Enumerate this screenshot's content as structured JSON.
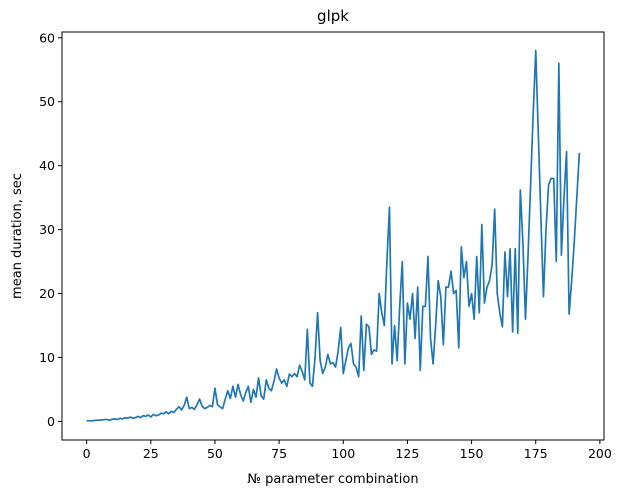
{
  "chart_data": {
    "type": "line",
    "title": "glpk",
    "x_label": "№ parameter combination",
    "y_label": "mean duration, sec",
    "x": [
      0,
      1,
      2,
      3,
      4,
      5,
      6,
      7,
      8,
      9,
      10,
      11,
      12,
      13,
      14,
      15,
      16,
      17,
      18,
      19,
      20,
      21,
      22,
      23,
      24,
      25,
      26,
      27,
      28,
      29,
      30,
      31,
      32,
      33,
      34,
      35,
      36,
      37,
      38,
      39,
      40,
      41,
      42,
      43,
      44,
      45,
      46,
      47,
      48,
      49,
      50,
      51,
      52,
      53,
      54,
      55,
      56,
      57,
      58,
      59,
      60,
      61,
      62,
      63,
      64,
      65,
      66,
      67,
      68,
      69,
      70,
      71,
      72,
      73,
      74,
      75,
      76,
      77,
      78,
      79,
      80,
      81,
      82,
      83,
      84,
      85,
      86,
      87,
      88,
      89,
      90,
      91,
      92,
      93,
      94,
      95,
      96,
      97,
      98,
      99,
      100,
      101,
      102,
      103,
      104,
      105,
      106,
      107,
      108,
      109,
      110,
      111,
      112,
      113,
      114,
      115,
      116,
      117,
      118,
      119,
      120,
      121,
      122,
      123,
      124,
      125,
      126,
      127,
      128,
      129,
      130,
      131,
      132,
      133,
      134,
      135,
      136,
      137,
      138,
      139,
      140,
      141,
      142,
      143,
      144,
      145,
      146,
      147,
      148,
      149,
      150,
      151,
      152,
      153,
      154,
      155,
      156,
      157,
      158,
      159,
      160,
      161,
      162,
      163,
      164,
      165,
      166,
      167,
      168,
      169,
      170,
      171,
      172,
      173,
      174,
      175,
      176,
      177,
      178,
      179,
      180,
      181,
      182,
      183,
      184,
      185,
      186,
      187,
      188,
      189,
      190,
      191,
      192
    ],
    "series": [
      {
        "color": "#1f77b4",
        "values": [
          0.1,
          0.1,
          0.1,
          0.15,
          0.2,
          0.2,
          0.25,
          0.3,
          0.3,
          0.2,
          0.35,
          0.4,
          0.3,
          0.5,
          0.4,
          0.6,
          0.5,
          0.7,
          0.5,
          0.6,
          0.8,
          0.6,
          0.9,
          0.8,
          1.0,
          0.7,
          1.1,
          0.9,
          1.0,
          1.3,
          1.2,
          1.5,
          1.2,
          1.6,
          1.4,
          1.9,
          2.3,
          1.8,
          2.5,
          3.8,
          2.0,
          2.2,
          1.9,
          2.6,
          3.5,
          2.4,
          2.0,
          2.2,
          2.5,
          2.3,
          5.2,
          2.6,
          2.3,
          2.0,
          3.5,
          4.8,
          3.6,
          5.5,
          3.8,
          5.8,
          4.2,
          3.2,
          4.5,
          5.5,
          3.0,
          5.0,
          3.8,
          6.8,
          4.0,
          3.5,
          6.5,
          5.2,
          4.8,
          6.3,
          8.2,
          6.8,
          6.0,
          6.5,
          5.5,
          7.4,
          7.0,
          7.5,
          7.0,
          8.8,
          7.8,
          6.5,
          14.4,
          6.0,
          5.5,
          10.0,
          17.0,
          9.5,
          7.5,
          8.5,
          10.5,
          9.0,
          9.2,
          8.5,
          11.0,
          14.7,
          7.5,
          9.5,
          11.5,
          12.2,
          9.0,
          8.5,
          7.0,
          16.5,
          8.0,
          15.2,
          14.8,
          10.5,
          11.2,
          11.0,
          20.0,
          17.0,
          15.0,
          25.0,
          33.5,
          9.0,
          15.0,
          9.5,
          18.0,
          25.0,
          9.0,
          18.5,
          16.0,
          20.0,
          13.0,
          21.0,
          8.0,
          18.0,
          18.0,
          25.8,
          13.0,
          9.0,
          15.0,
          22.0,
          19.5,
          12.0,
          21.0,
          21.0,
          23.5,
          20.0,
          20.5,
          11.5,
          27.3,
          22.5,
          25.0,
          18.0,
          20.0,
          16.0,
          25.8,
          17.0,
          30.8,
          18.5,
          21.0,
          22.0,
          24.5,
          33.2,
          20.0,
          17.0,
          14.8,
          26.5,
          19.5,
          27.0,
          14.0,
          27.0,
          13.8,
          36.2,
          28.0,
          16.0,
          26.0,
          37.0,
          48.0,
          58.0,
          45.0,
          32.0,
          19.5,
          30.0,
          37.0,
          38.0,
          38.0,
          25.0,
          56.0,
          26.0,
          35.0,
          42.2,
          16.8,
          22.0,
          28.0,
          35.0,
          42.0
        ]
      }
    ],
    "xlim": [
      -9.6,
      201.6
    ],
    "ylim": [
      -2.9,
      60.9
    ],
    "xticks": [
      0,
      25,
      50,
      75,
      100,
      125,
      150,
      175,
      200
    ],
    "yticks": [
      0,
      10,
      20,
      30,
      40,
      50,
      60
    ]
  }
}
